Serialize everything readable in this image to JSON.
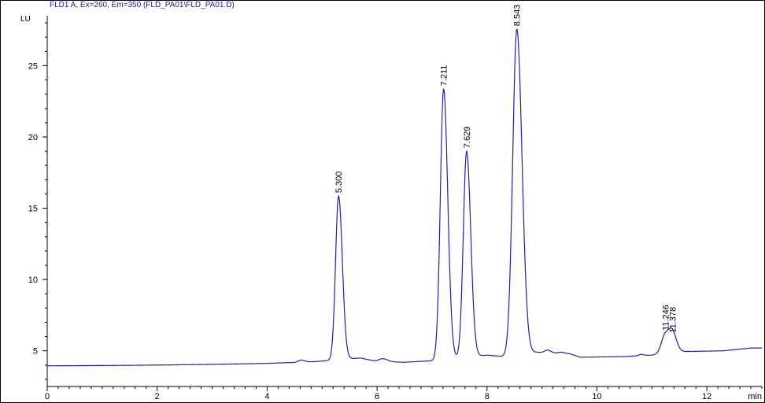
{
  "chart_data": {
    "type": "line",
    "title": "FLD1 A, Ex=260, Em=350 (FLD_PA01\\FLD_PA01.D)",
    "ylabel": "LU",
    "xlabel": "min",
    "xlim": [
      0,
      13
    ],
    "ylim": [
      2.5,
      28.5
    ],
    "x_ticks": [
      0,
      2,
      4,
      6,
      8,
      10,
      12
    ],
    "y_ticks": [
      5,
      10,
      15,
      20,
      25
    ],
    "x_minor_step": 0.2,
    "y_minor_step": 1,
    "grid": false,
    "line_color": "#1f1fb8",
    "baseline": [
      [
        0,
        3.95
      ],
      [
        1,
        3.97
      ],
      [
        2,
        4.0
      ],
      [
        3,
        4.05
      ],
      [
        4,
        4.12
      ],
      [
        4.6,
        4.2
      ],
      [
        4.9,
        4.25
      ],
      [
        5.7,
        4.5
      ],
      [
        6.0,
        4.25
      ],
      [
        6.5,
        4.2
      ],
      [
        7.0,
        4.3
      ],
      [
        8.0,
        4.7
      ],
      [
        8.3,
        4.6
      ],
      [
        8.9,
        4.9
      ],
      [
        9.5,
        4.8
      ],
      [
        9.7,
        4.55
      ],
      [
        10.5,
        4.6
      ],
      [
        11.0,
        4.7
      ],
      [
        11.6,
        4.95
      ],
      [
        12.3,
        5.0
      ],
      [
        12.8,
        5.2
      ],
      [
        13.0,
        5.2
      ]
    ],
    "peaks": [
      {
        "label": "5.300",
        "rt": 5.3,
        "height": 15.85,
        "width": 0.055
      },
      {
        "label": "7.211",
        "rt": 7.211,
        "height": 23.35,
        "width": 0.06
      },
      {
        "label": "7.629",
        "rt": 7.629,
        "height": 19.0,
        "width": 0.06
      },
      {
        "label": "8.543",
        "rt": 8.543,
        "height": 27.55,
        "width": 0.075
      },
      {
        "label": "11.246",
        "rt": 11.246,
        "height": 6.2,
        "width": 0.07
      },
      {
        "label": "11.378",
        "rt": 11.378,
        "height": 6.05,
        "width": 0.06
      }
    ],
    "minor_bumps": [
      {
        "rt": 4.62,
        "height": 4.35,
        "width": 0.05
      },
      {
        "rt": 6.1,
        "height": 4.45,
        "width": 0.07
      },
      {
        "rt": 9.1,
        "height": 5.05,
        "width": 0.05
      },
      {
        "rt": 9.35,
        "height": 4.9,
        "width": 0.05
      },
      {
        "rt": 10.8,
        "height": 4.75,
        "width": 0.04
      }
    ]
  }
}
